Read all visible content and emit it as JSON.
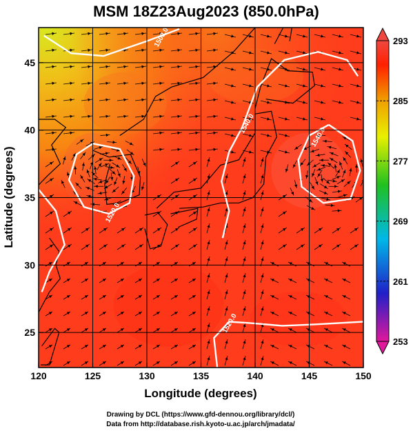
{
  "chart_data": {
    "type": "heatmap",
    "title": "MSM 18Z23Aug2023 (850.0hPa)",
    "xlabel": "Longitude (degrees)",
    "ylabel": "Latitude  (degrees)",
    "xlim": [
      120,
      150
    ],
    "ylim": [
      22.4,
      47.6
    ],
    "x_ticks": [
      "120",
      "125",
      "130",
      "135",
      "140",
      "145",
      "150"
    ],
    "x_tick_values": [
      120,
      125,
      130,
      135,
      140,
      145,
      150
    ],
    "y_ticks": [
      "25",
      "30",
      "35",
      "40",
      "45"
    ],
    "y_tick_values": [
      25,
      30,
      35,
      40,
      45
    ],
    "grid": true,
    "colorbar": {
      "ticks": [
        "293",
        "285",
        "277",
        "269",
        "261",
        "253"
      ],
      "tick_values": [
        293,
        285,
        277,
        269,
        261,
        253
      ],
      "range": [
        253,
        293
      ],
      "colors": [
        "#e0189c",
        "#2020c8",
        "#00b8e8",
        "#20c020",
        "#e8f000",
        "#f0a000",
        "#ff2000",
        "#f04840"
      ]
    },
    "contours": [
      {
        "label": "1500.0",
        "lon": 131.5,
        "lat": 46.8
      },
      {
        "label": "1520.0",
        "lon": 127.0,
        "lat": 33.8
      },
      {
        "label": "1540.0",
        "lon": 139.4,
        "lat": 40.4
      },
      {
        "label": "1540.0",
        "lon": 146.0,
        "lat": 39.4
      },
      {
        "label": "1520.0",
        "lon": 137.8,
        "lat": 25.6
      }
    ],
    "vortices": [
      {
        "lon": 126.0,
        "lat": 36.8
      },
      {
        "lon": 146.8,
        "lat": 36.8
      }
    ],
    "field_description_colors": {
      "background": "#ff4020",
      "warm_low_lat": "#ff2a18",
      "cool_north": "#f8a010",
      "coldest_corner": "#d8e820",
      "contour": "#ffffff",
      "streamline": "#000000",
      "coast": "#000000"
    }
  },
  "credits": {
    "line1": "Drawing by DCL (https://www.gfd-dennou.org/library/dcl/)",
    "line2": "Data from http://database.rish.kyoto-u.ac.jp/arch/jmadata/"
  }
}
